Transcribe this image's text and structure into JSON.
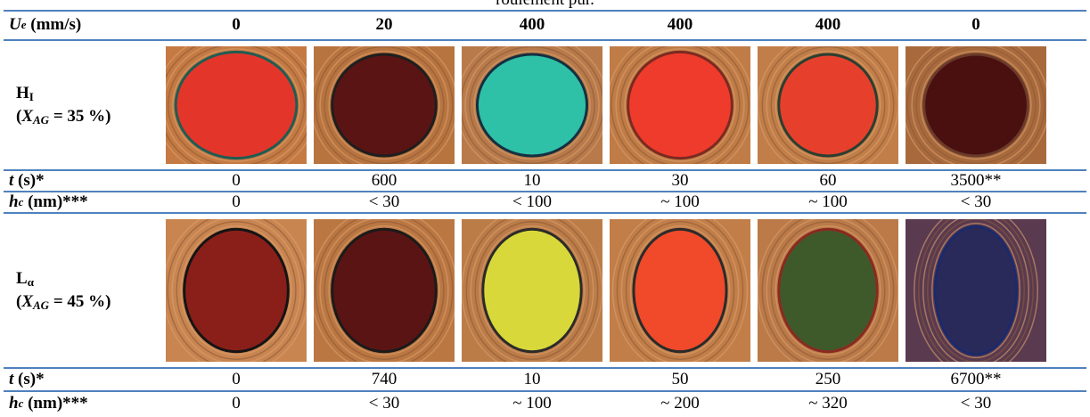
{
  "caption": "roulement pur.",
  "table": {
    "header": {
      "label": {
        "var": "U",
        "sub": "e",
        "rest": " (mm/s)"
      },
      "values": [
        "0",
        "20",
        "400",
        "400",
        "400",
        "0"
      ]
    },
    "groups": [
      {
        "phase": {
          "name": "H",
          "sub": "I"
        },
        "composition": {
          "open": "(",
          "var": "X",
          "sub": "AG",
          "rest": " = 35 %)"
        },
        "t": {
          "label": {
            "var": "t",
            "rest": " (s)*"
          },
          "values": [
            "0",
            "600",
            "10",
            "30",
            "60",
            "3500**"
          ]
        },
        "hc": {
          "label": {
            "var": "h",
            "sub": "c",
            "rest": " (nm)***"
          },
          "values": [
            "0",
            "< 30",
            "< 100",
            "~ 100",
            "~ 100",
            "< 30"
          ]
        }
      },
      {
        "phase": {
          "name": "L",
          "sub": "α"
        },
        "composition": {
          "open": "(",
          "var": "X",
          "sub": "AG",
          "rest": " = 45 %)"
        },
        "t": {
          "label": {
            "var": "t",
            "rest": " (s)*"
          },
          "values": [
            "0",
            "740",
            "10",
            "50",
            "250",
            "6700**"
          ]
        },
        "hc": {
          "label": {
            "var": "h",
            "sub": "c",
            "rest": " (nm)***"
          },
          "values": [
            "0",
            "< 30",
            "~ 100",
            "~ 200",
            "~ 320",
            "< 30"
          ]
        }
      }
    ]
  }
}
